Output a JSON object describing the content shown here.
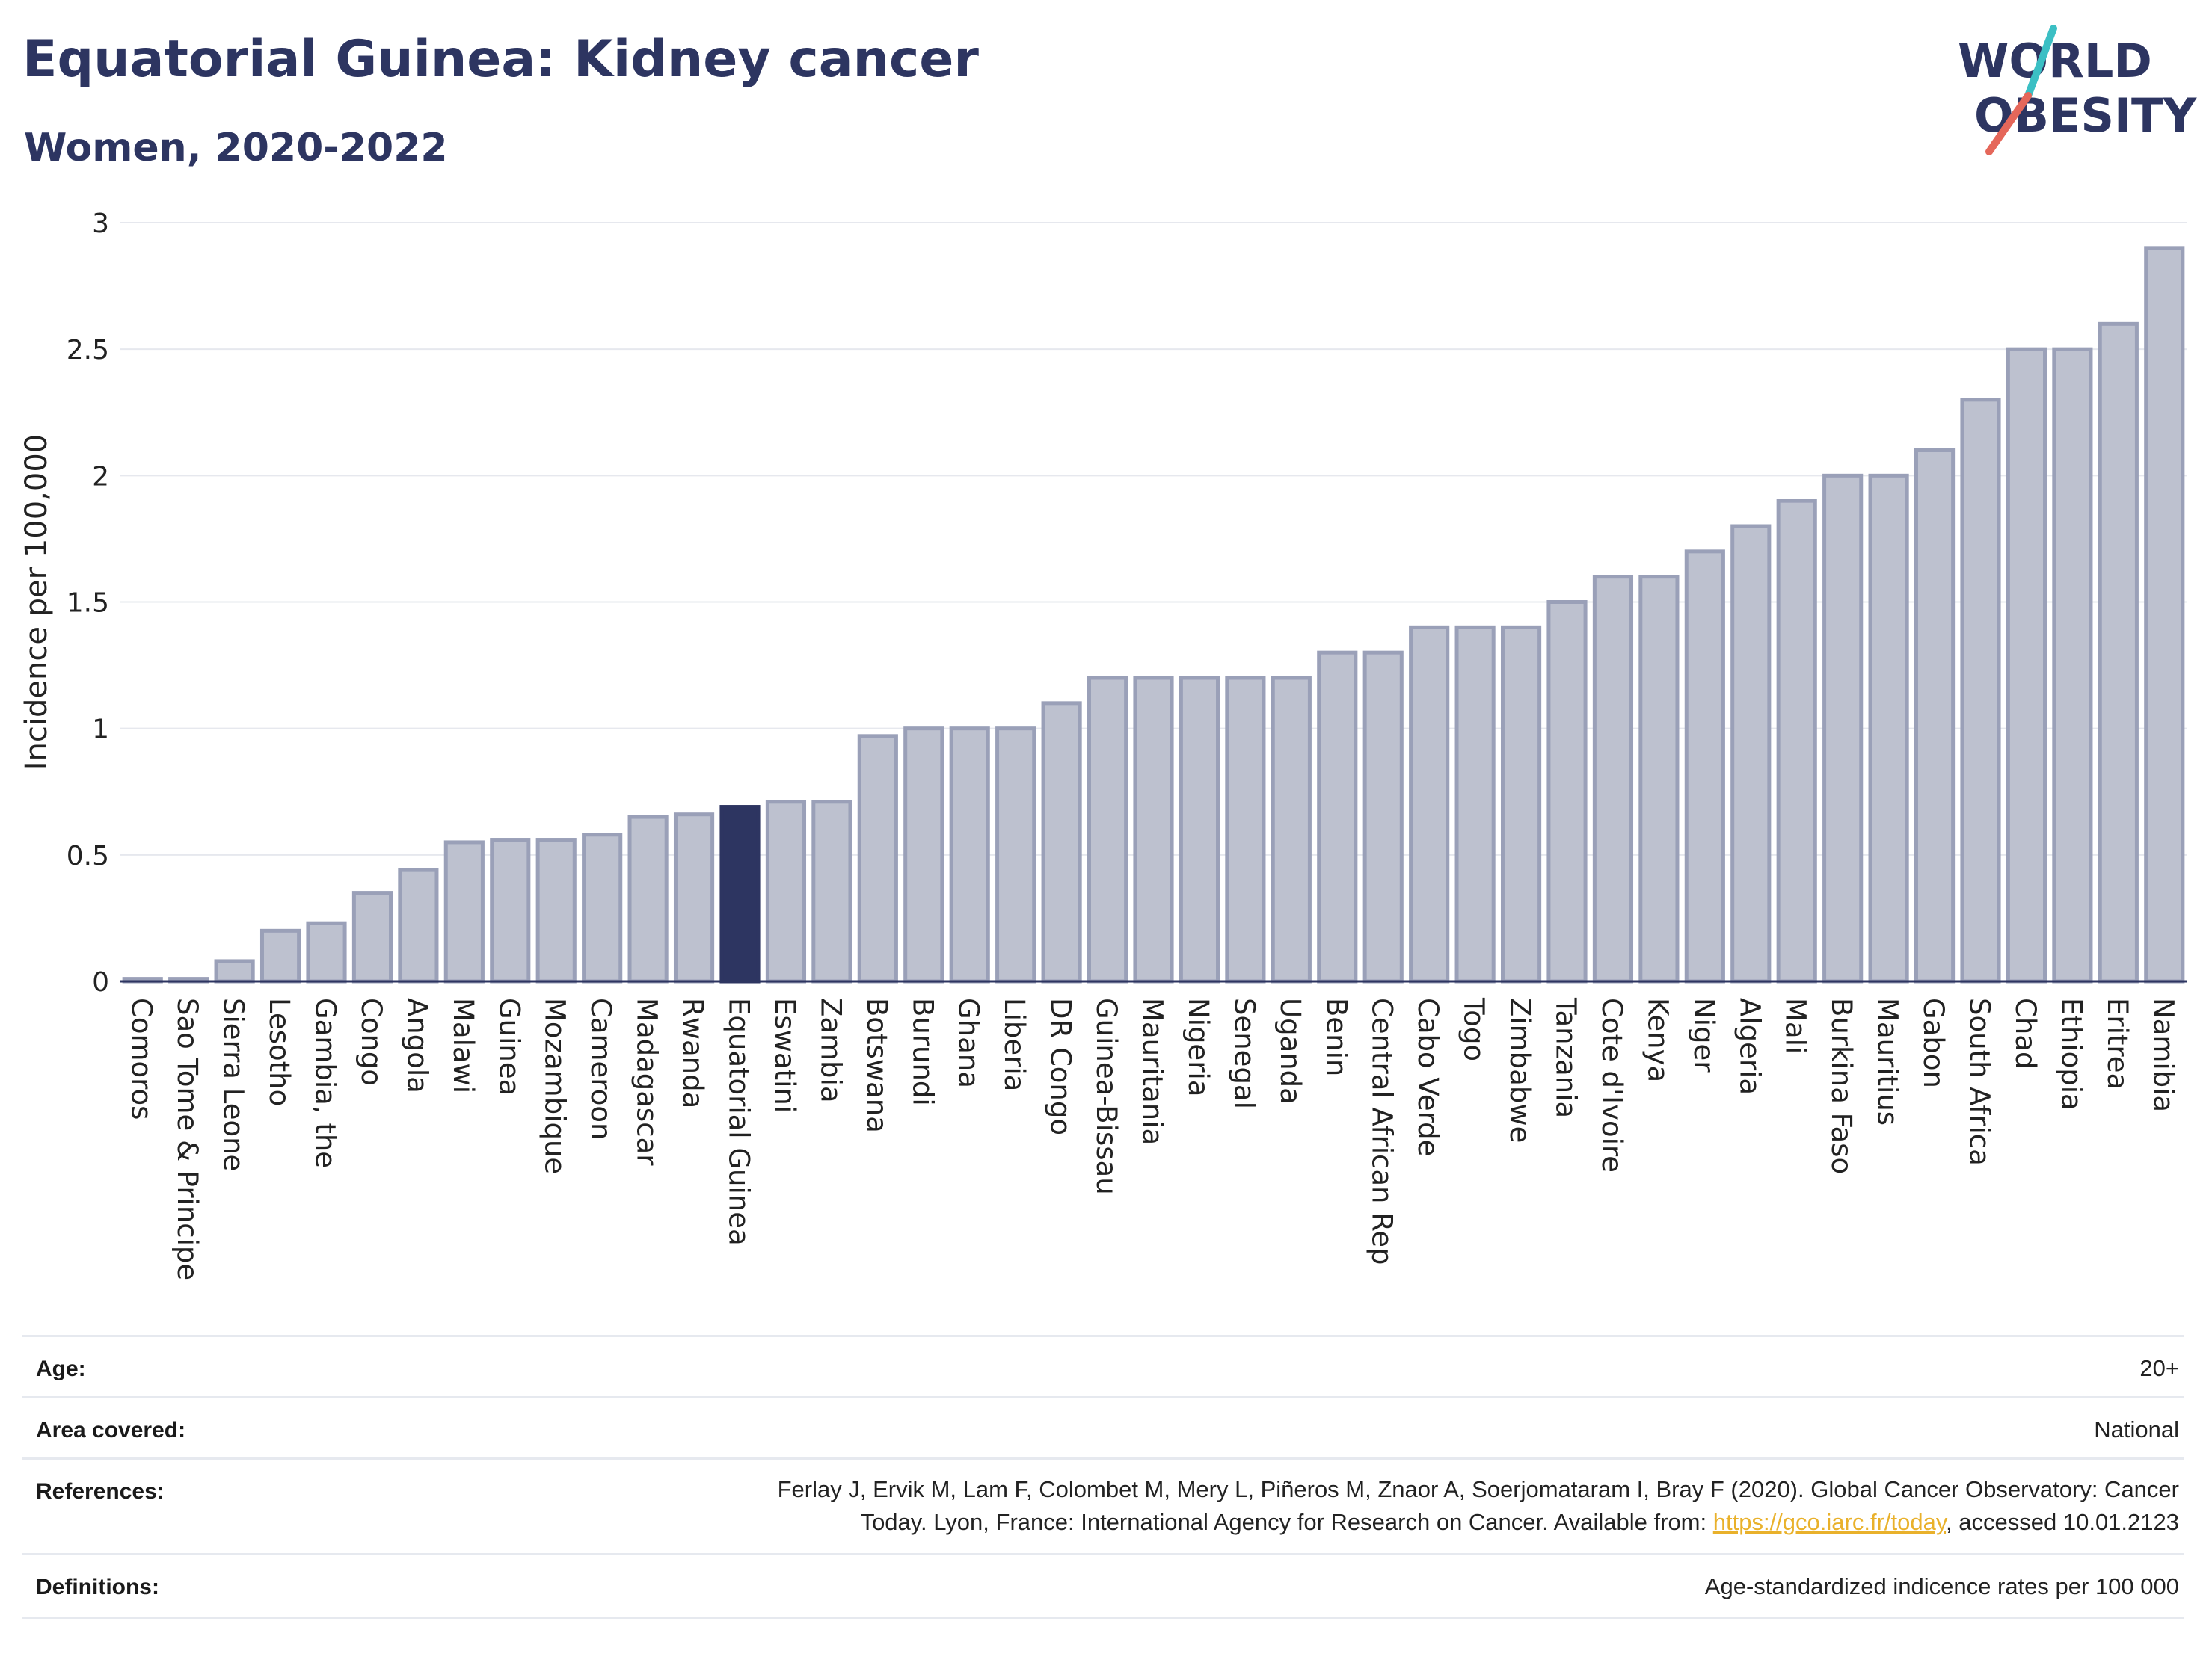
{
  "header": {
    "title": "Equatorial Guinea: Kidney cancer",
    "subtitle": "Women, 2020-2022"
  },
  "logo": {
    "line1": "WORLD",
    "line2": "OBESITY",
    "colors": {
      "text": "#2d3561",
      "slash_teal": "#3bbfc4",
      "slash_red": "#e5675a"
    }
  },
  "colors": {
    "bar_fill": "#bdc1cf",
    "bar_stroke": "#9aa0b8",
    "highlight_fill": "#2d3561",
    "grid": "#e6e8ee",
    "axis_text": "#222222"
  },
  "chart_data": {
    "type": "bar",
    "xlabel": "",
    "ylabel": "Incidence per 100,000",
    "ylim": [
      0,
      3
    ],
    "yticks": [
      0,
      0.5,
      1,
      1.5,
      2,
      2.5,
      3
    ],
    "ytick_labels": [
      "0",
      "0.5",
      "1",
      "1.5",
      "2",
      "2.5",
      "3"
    ],
    "grid": true,
    "highlight": "Equatorial Guinea",
    "categories": [
      "Comoros",
      "Sao Tome & Principe",
      "Sierra Leone",
      "Lesotho",
      "Gambia, the",
      "Congo",
      "Angola",
      "Malawi",
      "Guinea",
      "Mozambique",
      "Cameroon",
      "Madagascar",
      "Rwanda",
      "Equatorial Guinea",
      "Eswatini",
      "Zambia",
      "Botswana",
      "Burundi",
      "Ghana",
      "Liberia",
      "DR Congo",
      "Guinea-Bissau",
      "Mauritania",
      "Nigeria",
      "Senegal",
      "Uganda",
      "Benin",
      "Central African Rep",
      "Cabo Verde",
      "Togo",
      "Zimbabwe",
      "Tanzania",
      "Cote d'Ivoire",
      "Kenya",
      "Niger",
      "Algeria",
      "Mali",
      "Burkina Faso",
      "Mauritius",
      "Gabon",
      "South Africa",
      "Chad",
      "Ethiopia",
      "Eritrea",
      "Namibia"
    ],
    "values": [
      0.01,
      0.01,
      0.08,
      0.2,
      0.23,
      0.35,
      0.44,
      0.55,
      0.56,
      0.56,
      0.58,
      0.65,
      0.66,
      0.69,
      0.71,
      0.71,
      0.97,
      1.0,
      1.0,
      1.0,
      1.1,
      1.2,
      1.2,
      1.2,
      1.2,
      1.2,
      1.3,
      1.3,
      1.4,
      1.4,
      1.4,
      1.5,
      1.6,
      1.6,
      1.7,
      1.8,
      1.9,
      2.0,
      2.0,
      2.1,
      2.3,
      2.5,
      2.5,
      2.6,
      2.9
    ]
  },
  "info_table": {
    "rows": [
      {
        "label": "Age:",
        "value": "20+"
      },
      {
        "label": "Area covered:",
        "value": "National"
      },
      {
        "label": "References:",
        "value_line1": "Ferlay J, Ervik M, Lam F, Colombet M, Mery L, Piñeros M, Znaor A, Soerjomataram I, Bray F (2020). Global Cancer Observatory: Cancer",
        "value_line2_pre": "Today. Lyon, France: International Agency for Research on Cancer. Available from: ",
        "value_link": "https://gco.iarc.fr/today",
        "value_line2_post": ", accessed 10.01.2123"
      },
      {
        "label": "Definitions:",
        "value": "Age-standardized indicence rates per 100 000"
      }
    ]
  }
}
